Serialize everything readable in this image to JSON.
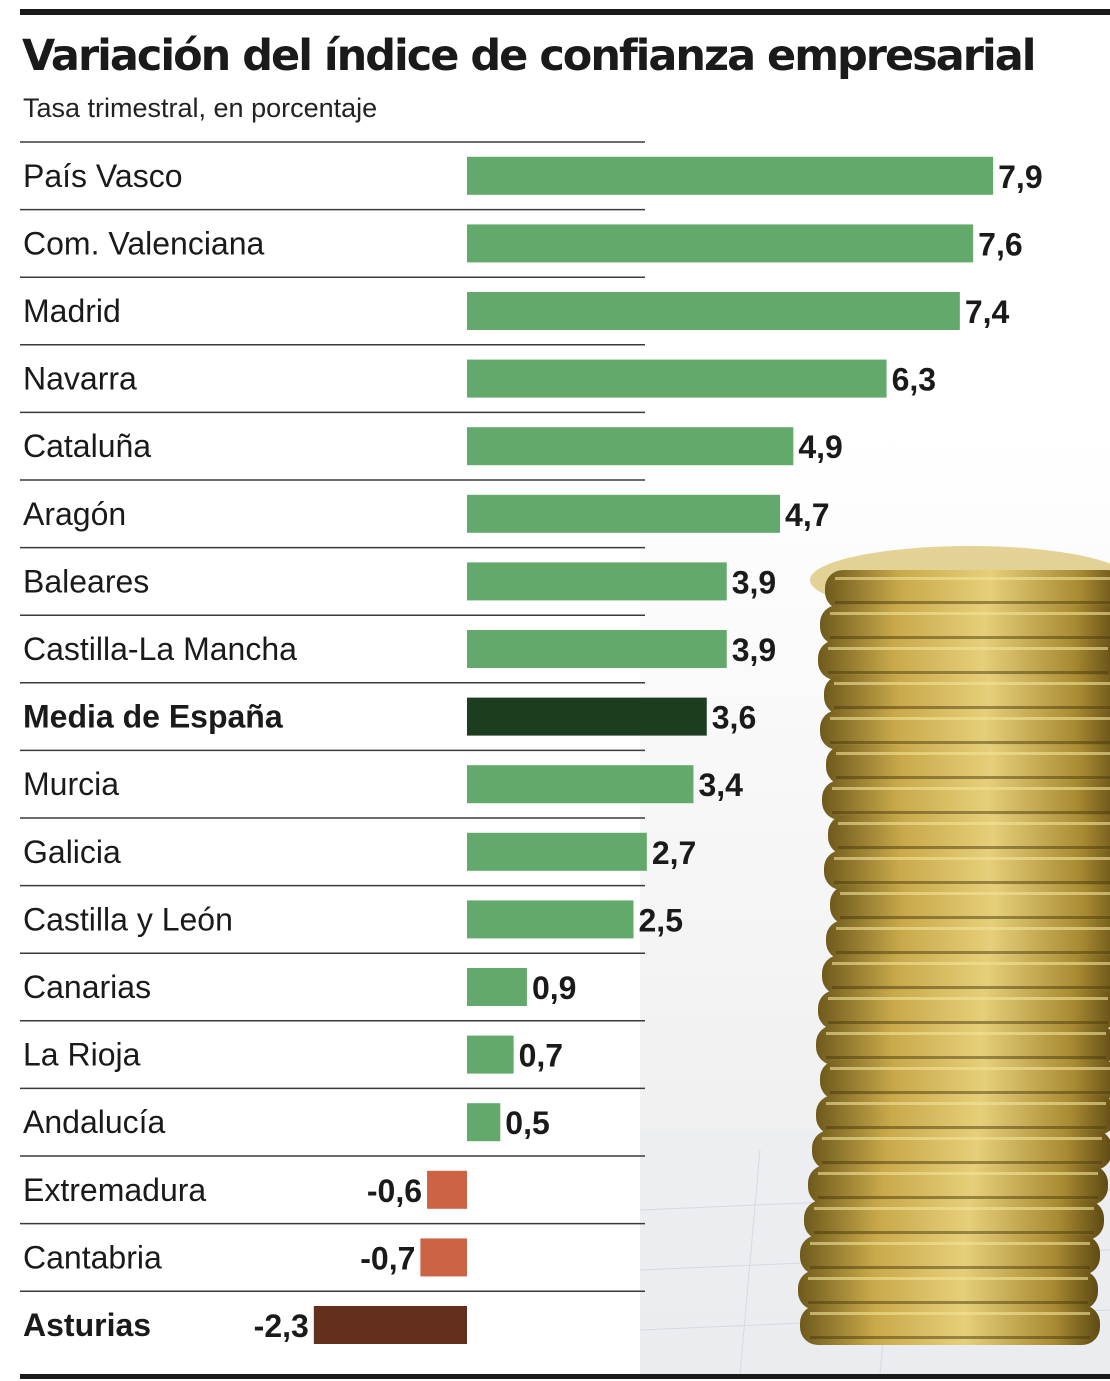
{
  "title": "Variación del índice de confianza empresarial",
  "subtitle": "Tasa trimestral, en porcentaje",
  "colors": {
    "positive": "#62a96b",
    "highlight_average": "#1d3d21",
    "negative": "#cc6344",
    "highlight_asturias": "#62301d",
    "separator": "#3a3a3a"
  },
  "chart_data": {
    "type": "bar",
    "orientation": "horizontal",
    "title": "Variación del índice de confianza empresarial",
    "subtitle": "Tasa trimestral, en porcentaje",
    "categories": [
      "País Vasco",
      "Com. Valenciana",
      "Madrid",
      "Navarra",
      "Cataluña",
      "Aragón",
      "Baleares",
      "Castilla-La Mancha",
      "Media de España",
      "Murcia",
      "Galicia",
      "Castilla y León",
      "Canarias",
      "La Rioja",
      "Andalucía",
      "Extremadura",
      "Cantabria",
      "Asturias"
    ],
    "values": [
      7.9,
      7.6,
      7.4,
      6.3,
      4.9,
      4.7,
      3.9,
      3.9,
      3.6,
      3.4,
      2.7,
      2.5,
      0.9,
      0.7,
      0.5,
      -0.6,
      -0.7,
      -2.3
    ],
    "value_labels": [
      "7,9",
      "7,6",
      "7,4",
      "6,3",
      "4,9",
      "4,7",
      "3,9",
      "3,9",
      "3,6",
      "3,4",
      "2,7",
      "2,5",
      "0,9",
      "0,7",
      "0,5",
      "-0,6",
      "-0,7",
      "-2,3"
    ],
    "highlighted": [
      "Media de España",
      "Asturias"
    ],
    "xlim": [
      -2.3,
      7.9
    ],
    "grid": false,
    "legend": "none"
  }
}
